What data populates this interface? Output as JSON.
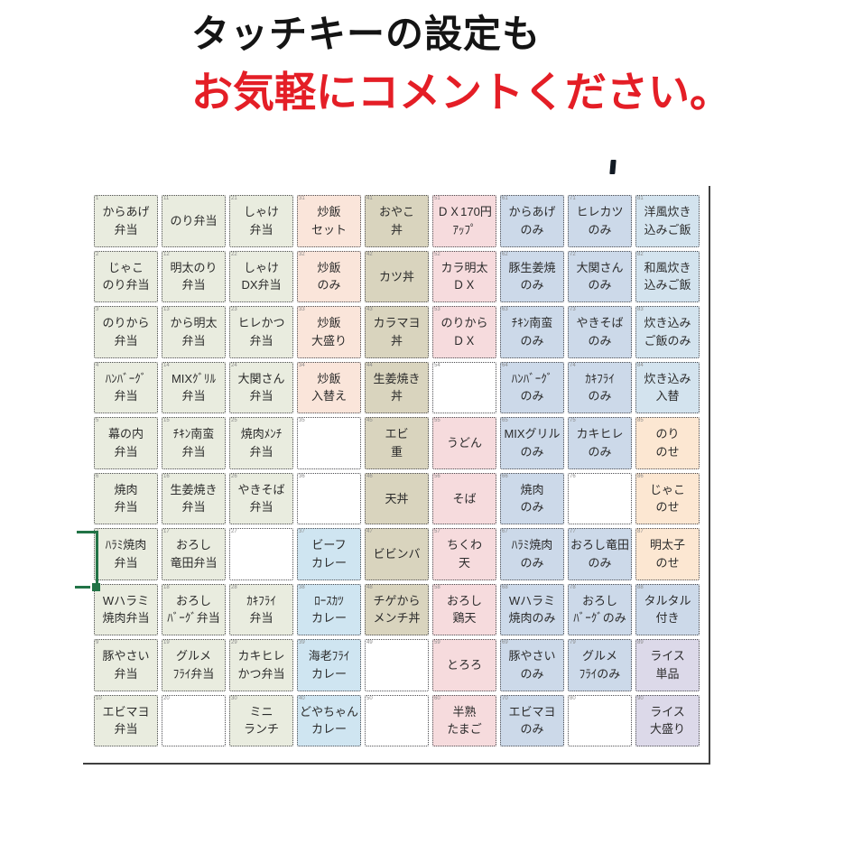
{
  "title": {
    "line1": "タッチキーの設定も",
    "line2": "お気軽にコメントください。"
  },
  "colors": {
    "green": "#e9ecdf",
    "salmon": "#fae5da",
    "khaki": "#d9d4be",
    "pink": "#f6dbdd",
    "blue": "#ccd9e9",
    "bluelight": "#d3e3ee",
    "bluecurry": "#cfe5f1",
    "peach": "#fce7d2",
    "lavender": "#dcd9e9",
    "white": "#ffffff",
    "title_black": "#141414",
    "title_red": "#e41e26",
    "selection_green": "#217346",
    "frame_gray": "#3f3f3f"
  },
  "grid": {
    "columns": 9,
    "rows": 10,
    "cells": [
      {
        "n": "1",
        "lines": [
          "からあげ",
          "弁当"
        ],
        "color": "green"
      },
      {
        "n": "11",
        "lines": [
          "のり弁当"
        ],
        "color": "green"
      },
      {
        "n": "21",
        "lines": [
          "しゃけ",
          "弁当"
        ],
        "color": "green"
      },
      {
        "n": "31",
        "lines": [
          "炒飯",
          "セット"
        ],
        "color": "salmon"
      },
      {
        "n": "41",
        "lines": [
          "おやこ",
          "丼"
        ],
        "color": "khaki"
      },
      {
        "n": "51",
        "lines": [
          "ＤＸ170円",
          "ｱｯﾌﾟ"
        ],
        "color": "pink"
      },
      {
        "n": "61",
        "lines": [
          "からあげ",
          "のみ"
        ],
        "color": "blue"
      },
      {
        "n": "71",
        "lines": [
          "ヒレカツ",
          "のみ"
        ],
        "color": "blue"
      },
      {
        "n": "81",
        "lines": [
          "洋風炊き",
          "込みご飯"
        ],
        "color": "bluelight"
      },
      {
        "n": "2",
        "lines": [
          "じゃこ",
          "のり弁当"
        ],
        "color": "green"
      },
      {
        "n": "12",
        "lines": [
          "明太のり",
          "弁当"
        ],
        "color": "green"
      },
      {
        "n": "22",
        "lines": [
          "しゃけ",
          "DX弁当"
        ],
        "color": "green"
      },
      {
        "n": "32",
        "lines": [
          "炒飯",
          "のみ"
        ],
        "color": "salmon"
      },
      {
        "n": "42",
        "lines": [
          "カツ丼"
        ],
        "color": "khaki"
      },
      {
        "n": "52",
        "lines": [
          "カラ明太",
          "ＤＸ"
        ],
        "color": "pink"
      },
      {
        "n": "62",
        "lines": [
          "豚生姜焼",
          "のみ"
        ],
        "color": "blue"
      },
      {
        "n": "72",
        "lines": [
          "大関さん",
          "のみ"
        ],
        "color": "blue"
      },
      {
        "n": "82",
        "lines": [
          "和風炊き",
          "込みご飯"
        ],
        "color": "bluelight"
      },
      {
        "n": "3",
        "lines": [
          "のりから",
          "弁当"
        ],
        "color": "green"
      },
      {
        "n": "13",
        "lines": [
          "から明太",
          "弁当"
        ],
        "color": "green"
      },
      {
        "n": "23",
        "lines": [
          "ヒレかつ",
          "弁当"
        ],
        "color": "green"
      },
      {
        "n": "33",
        "lines": [
          "炒飯",
          "大盛り"
        ],
        "color": "salmon"
      },
      {
        "n": "43",
        "lines": [
          "カラマヨ",
          "丼"
        ],
        "color": "khaki"
      },
      {
        "n": "53",
        "lines": [
          "のりから",
          "ＤＸ"
        ],
        "color": "pink"
      },
      {
        "n": "63",
        "lines": [
          "ﾁｷﾝ南蛮",
          "のみ"
        ],
        "color": "blue"
      },
      {
        "n": "73",
        "lines": [
          "やきそば",
          "のみ"
        ],
        "color": "blue"
      },
      {
        "n": "83",
        "lines": [
          "炊き込み",
          "ご飯のみ"
        ],
        "color": "bluelight"
      },
      {
        "n": "4",
        "lines": [
          "ﾊﾝﾊﾞｰｸﾞ",
          "弁当"
        ],
        "color": "green"
      },
      {
        "n": "14",
        "lines": [
          "MIXｸﾞﾘﾙ",
          "弁当"
        ],
        "color": "green"
      },
      {
        "n": "24",
        "lines": [
          "大関さん",
          "弁当"
        ],
        "color": "green"
      },
      {
        "n": "34",
        "lines": [
          "炒飯",
          "入替え"
        ],
        "color": "salmon"
      },
      {
        "n": "44",
        "lines": [
          "生姜焼き",
          "丼"
        ],
        "color": "khaki"
      },
      {
        "n": "54",
        "lines": [],
        "color": "white"
      },
      {
        "n": "64",
        "lines": [
          "ﾊﾝﾊﾞｰｸﾞ",
          "のみ"
        ],
        "color": "blue"
      },
      {
        "n": "74",
        "lines": [
          "ｶｷﾌﾗｲ",
          "のみ"
        ],
        "color": "blue"
      },
      {
        "n": "84",
        "lines": [
          "炊き込み",
          "入替"
        ],
        "color": "bluelight"
      },
      {
        "n": "5",
        "lines": [
          "幕の内",
          "弁当"
        ],
        "color": "green"
      },
      {
        "n": "15",
        "lines": [
          "ﾁｷﾝ南蛮",
          "弁当"
        ],
        "color": "green"
      },
      {
        "n": "25",
        "lines": [
          "焼肉ﾒﾝﾁ",
          "弁当"
        ],
        "color": "green"
      },
      {
        "n": "35",
        "lines": [],
        "color": "white"
      },
      {
        "n": "45",
        "lines": [
          "エビ",
          "重"
        ],
        "color": "khaki"
      },
      {
        "n": "55",
        "lines": [
          "うどん"
        ],
        "color": "pink"
      },
      {
        "n": "65",
        "lines": [
          "MIXグリル",
          "のみ"
        ],
        "color": "blue"
      },
      {
        "n": "75",
        "lines": [
          "カキヒレ",
          "のみ"
        ],
        "color": "blue"
      },
      {
        "n": "85",
        "lines": [
          "のり",
          "のせ"
        ],
        "color": "peach"
      },
      {
        "n": "6",
        "lines": [
          "焼肉",
          "弁当"
        ],
        "color": "green"
      },
      {
        "n": "16",
        "lines": [
          "生姜焼き",
          "弁当"
        ],
        "color": "green"
      },
      {
        "n": "26",
        "lines": [
          "やきそば",
          "弁当"
        ],
        "color": "green"
      },
      {
        "n": "36",
        "lines": [],
        "color": "white"
      },
      {
        "n": "46",
        "lines": [
          "天丼"
        ],
        "color": "khaki"
      },
      {
        "n": "56",
        "lines": [
          "そば"
        ],
        "color": "pink"
      },
      {
        "n": "66",
        "lines": [
          "焼肉",
          "のみ"
        ],
        "color": "blue"
      },
      {
        "n": "76",
        "lines": [],
        "color": "white"
      },
      {
        "n": "86",
        "lines": [
          "じゃこ",
          "のせ"
        ],
        "color": "peach"
      },
      {
        "n": "7",
        "lines": [
          "ﾊﾗﾐ焼肉",
          "弁当"
        ],
        "color": "green"
      },
      {
        "n": "17",
        "lines": [
          "おろし",
          "竜田弁当"
        ],
        "color": "green"
      },
      {
        "n": "27",
        "lines": [],
        "color": "white"
      },
      {
        "n": "37",
        "lines": [
          "ビーフ",
          "カレー"
        ],
        "color": "bluecurry"
      },
      {
        "n": "47",
        "lines": [
          "ビビンバ"
        ],
        "color": "khaki"
      },
      {
        "n": "57",
        "lines": [
          "ちくわ",
          "天"
        ],
        "color": "pink"
      },
      {
        "n": "67",
        "lines": [
          "ﾊﾗﾐ焼肉",
          "のみ"
        ],
        "color": "blue"
      },
      {
        "n": "77",
        "lines": [
          "おろし竜田",
          "のみ"
        ],
        "color": "blue"
      },
      {
        "n": "87",
        "lines": [
          "明太子",
          "のせ"
        ],
        "color": "peach"
      },
      {
        "n": "8",
        "lines": [
          "Wハラミ",
          "焼肉弁当"
        ],
        "color": "green"
      },
      {
        "n": "18",
        "lines": [
          "おろし",
          "ﾊﾞｰｸﾞ弁当"
        ],
        "color": "green"
      },
      {
        "n": "28",
        "lines": [
          "ｶｷﾌﾗｲ",
          "弁当"
        ],
        "color": "green"
      },
      {
        "n": "38",
        "lines": [
          "ﾛｰｽｶﾂ",
          "カレー"
        ],
        "color": "bluecurry"
      },
      {
        "n": "48",
        "lines": [
          "チゲから",
          "メンチ丼"
        ],
        "color": "khaki"
      },
      {
        "n": "58",
        "lines": [
          "おろし",
          "鶏天"
        ],
        "color": "pink"
      },
      {
        "n": "68",
        "lines": [
          "Wハラミ",
          "焼肉のみ"
        ],
        "color": "blue"
      },
      {
        "n": "78",
        "lines": [
          "おろし",
          "ﾊﾞｰｸﾞのみ"
        ],
        "color": "blue"
      },
      {
        "n": "88",
        "lines": [
          "タルタル",
          "付き"
        ],
        "color": "blue"
      },
      {
        "n": "9",
        "lines": [
          "豚やさい",
          "弁当"
        ],
        "color": "green"
      },
      {
        "n": "19",
        "lines": [
          "グルメ",
          "ﾌﾗｲ弁当"
        ],
        "color": "green"
      },
      {
        "n": "29",
        "lines": [
          "カキヒレ",
          "かつ弁当"
        ],
        "color": "green"
      },
      {
        "n": "39",
        "lines": [
          "海老ﾌﾗｲ",
          "カレー"
        ],
        "color": "bluecurry"
      },
      {
        "n": "49",
        "lines": [],
        "color": "white"
      },
      {
        "n": "59",
        "lines": [
          "とろろ"
        ],
        "color": "pink"
      },
      {
        "n": "69",
        "lines": [
          "豚やさい",
          "のみ"
        ],
        "color": "blue"
      },
      {
        "n": "79",
        "lines": [
          "グルメ",
          "ﾌﾗｲのみ"
        ],
        "color": "blue"
      },
      {
        "n": "89",
        "lines": [
          "ライス",
          "単品"
        ],
        "color": "lavender"
      },
      {
        "n": "10",
        "lines": [
          "エビマヨ",
          "弁当"
        ],
        "color": "green"
      },
      {
        "n": "20",
        "lines": [],
        "color": "white"
      },
      {
        "n": "30",
        "lines": [
          "ミニ",
          "ランチ"
        ],
        "color": "green"
      },
      {
        "n": "40",
        "lines": [
          "どやちゃん",
          "カレー"
        ],
        "color": "bluecurry"
      },
      {
        "n": "50",
        "lines": [],
        "color": "white"
      },
      {
        "n": "60",
        "lines": [
          "半熟",
          "たまご"
        ],
        "color": "pink"
      },
      {
        "n": "70",
        "lines": [
          "エビマヨ",
          "のみ"
        ],
        "color": "blue"
      },
      {
        "n": "80",
        "lines": [],
        "color": "white"
      },
      {
        "n": "90",
        "lines": [
          "ライス",
          "大盛り"
        ],
        "color": "lavender"
      }
    ]
  }
}
